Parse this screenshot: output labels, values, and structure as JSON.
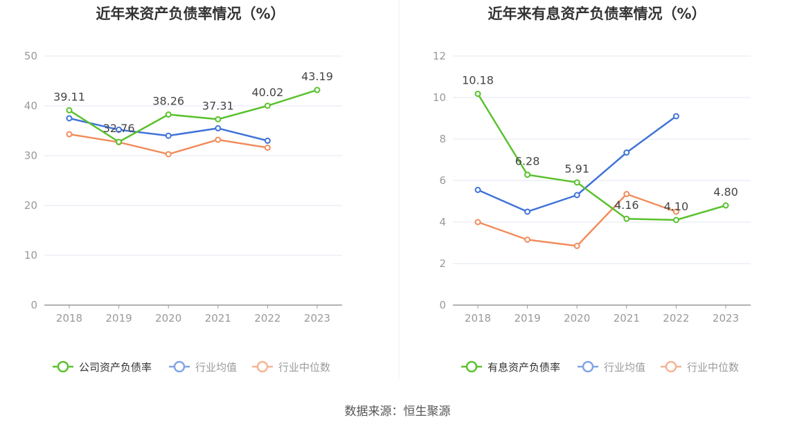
{
  "source_text": "数据来源：恒生聚源",
  "colors": {
    "company": "#5ac12d",
    "avg": "#3f72d9",
    "median": "#f28c5c",
    "axis": "#999999",
    "grid": "#e3e7f3",
    "label": "#444444"
  },
  "chart_data": [
    {
      "type": "line",
      "title": "近年来资产负债率情况（%）",
      "categories": [
        "2018",
        "2019",
        "2020",
        "2021",
        "2022",
        "2023"
      ],
      "ylim": [
        0,
        50
      ],
      "yticks": [
        0,
        10,
        20,
        30,
        40,
        50
      ],
      "series": [
        {
          "key": "company",
          "name": "公司资产负债率",
          "values": [
            39.11,
            32.76,
            38.26,
            37.31,
            40.02,
            43.19
          ],
          "labels": [
            "39.11",
            "32.76",
            "38.26",
            "37.31",
            "40.02",
            "43.19"
          ]
        },
        {
          "key": "avg",
          "name": "行业均值",
          "values": [
            37.5,
            35.2,
            34.0,
            35.5,
            33.0,
            null
          ]
        },
        {
          "key": "median",
          "name": "行业中位数",
          "values": [
            34.3,
            32.7,
            30.3,
            33.2,
            31.6,
            null
          ]
        }
      ]
    },
    {
      "type": "line",
      "title": "近年来有息资产负债率情况（%）",
      "categories": [
        "2018",
        "2019",
        "2020",
        "2021",
        "2022",
        "2023"
      ],
      "ylim": [
        0,
        12
      ],
      "yticks": [
        0,
        2,
        4,
        6,
        8,
        10,
        12
      ],
      "series": [
        {
          "key": "company",
          "name": "有息资产负债率",
          "values": [
            10.18,
            6.28,
            5.91,
            4.16,
            4.1,
            4.8
          ],
          "labels": [
            "10.18",
            "6.28",
            "5.91",
            "4.16",
            "4.10",
            "4.80"
          ]
        },
        {
          "key": "avg",
          "name": "行业均值",
          "values": [
            5.55,
            4.5,
            5.3,
            7.35,
            9.1,
            null
          ]
        },
        {
          "key": "median",
          "name": "行业中位数",
          "values": [
            4.0,
            3.15,
            2.85,
            5.35,
            4.5,
            null
          ]
        }
      ]
    }
  ]
}
